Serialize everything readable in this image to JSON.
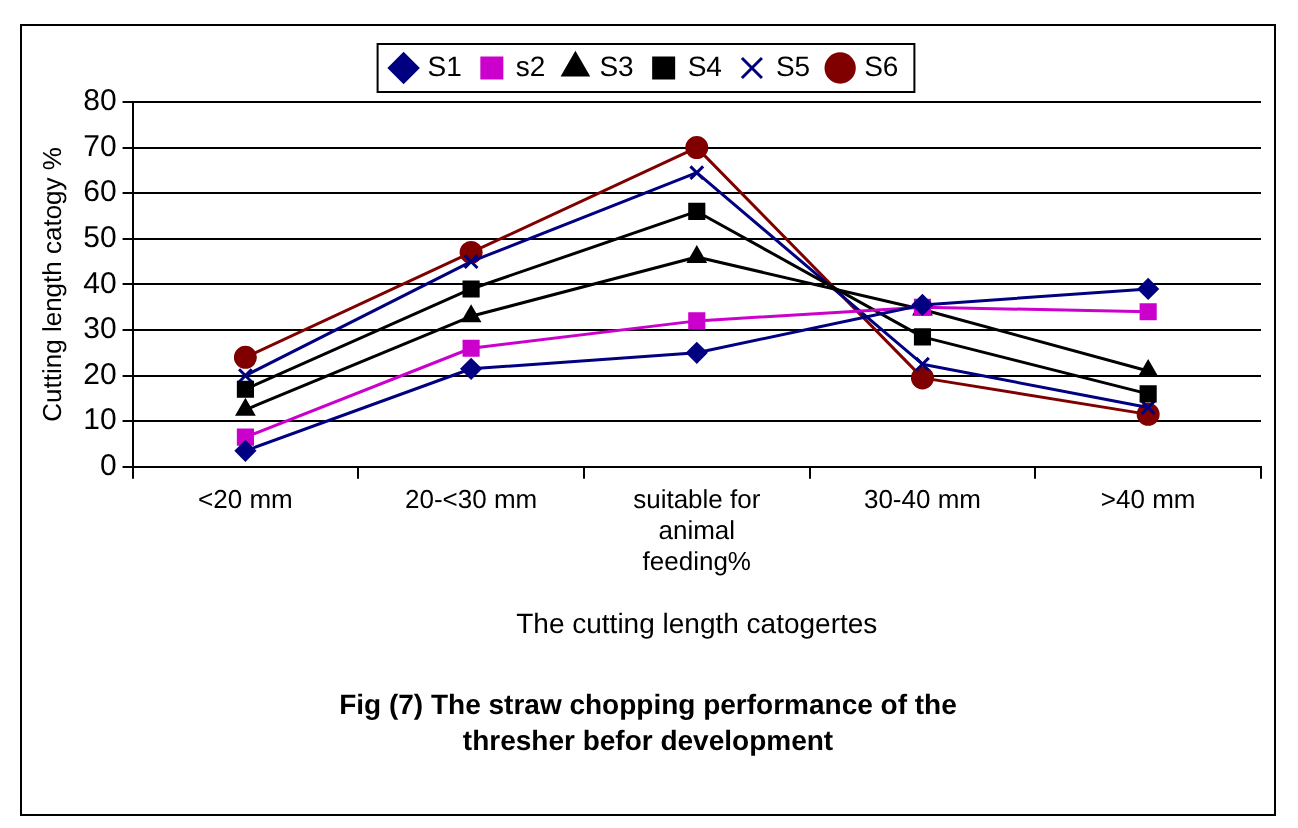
{
  "chart_data": {
    "type": "line",
    "xlabel": "The cutting length catogertes",
    "ylabel": "Cutting length catogy %",
    "categories": [
      "<20 mm",
      "20-<30 mm",
      "suitable for animal feeding%",
      "30-40 mm",
      ">40 mm"
    ],
    "series": [
      {
        "name": "S1",
        "color": "#000080",
        "marker": "diamond",
        "values": [
          3.5,
          21.5,
          25,
          35.5,
          39
        ]
      },
      {
        "name": "s2",
        "color": "#cc00cc",
        "marker": "square",
        "values": [
          6.5,
          26,
          32,
          35,
          34
        ]
      },
      {
        "name": "S3",
        "color": "#000000",
        "marker": "triangle",
        "values": [
          12.5,
          33,
          46,
          34.5,
          21
        ]
      },
      {
        "name": "S4",
        "color": "#000000",
        "marker": "square",
        "values": [
          17,
          39,
          56,
          28.5,
          16
        ]
      },
      {
        "name": "S5",
        "color": "#000080",
        "marker": "cross",
        "values": [
          20,
          45,
          64.5,
          22.5,
          13
        ]
      },
      {
        "name": "S6",
        "color": "#800000",
        "marker": "circle",
        "values": [
          24,
          47,
          70,
          19.5,
          11.5
        ]
      }
    ],
    "ylim": [
      0,
      80
    ],
    "yticks": [
      0,
      10,
      20,
      30,
      40,
      50,
      60,
      70,
      80
    ],
    "grid": "y",
    "legend": "top",
    "line_style": "solid",
    "annotations": [
      "Fig (7) The straw chopping performance of the thresher befor development"
    ]
  }
}
